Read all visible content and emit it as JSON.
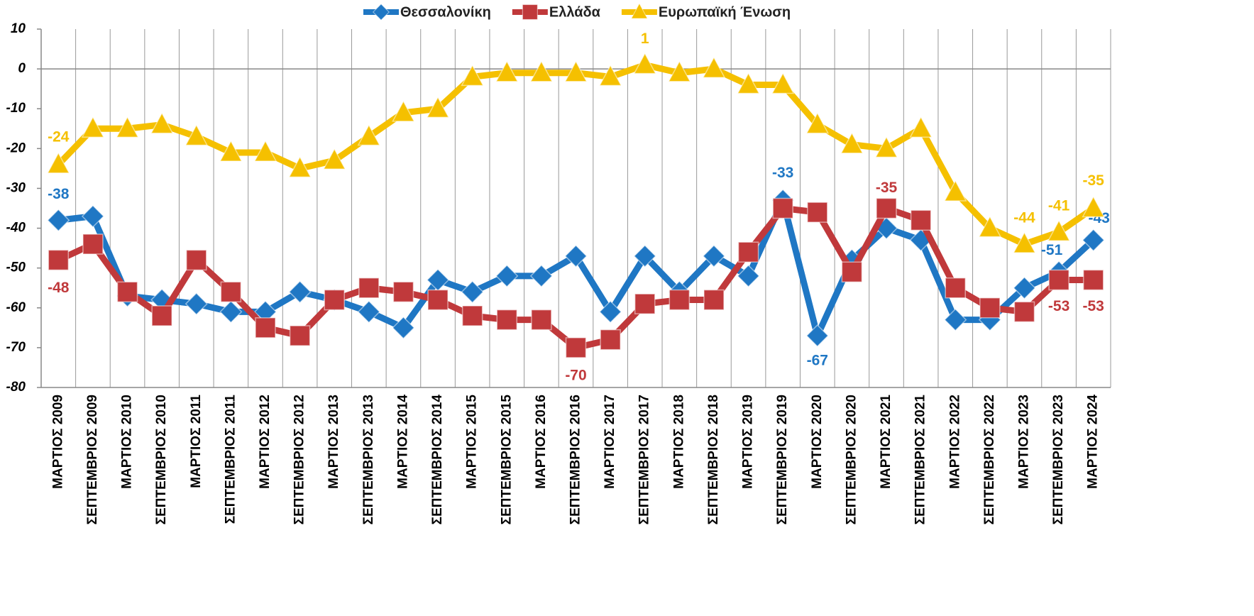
{
  "chart_data": {
    "type": "line",
    "categories": [
      "ΜΑΡΤΙΟΣ 2009",
      "ΣΕΠΤΕΜΒΡΙΟΣ 2009",
      "ΜΑΡΤΙΟΣ 2010",
      "ΣΕΠΤΕΜΒΡΙΟΣ 2010",
      "ΜΑΡΤΙΟΣ 2011",
      "ΣΕΠΤΕΜΒΡΙΟΣ 2011",
      "ΜΑΡΤΙΟΣ 2012",
      "ΣΕΠΤΕΜΒΡΙΟΣ 2012",
      "ΜΑΡΤΙΟΣ 2013",
      "ΣΕΠΤΕΜΒΡΙΟΣ 2013",
      "ΜΑΡΤΙΟΣ 2014",
      "ΣΕΠΤΕΜΒΡΙΟΣ 2014",
      "ΜΑΡΤΙΟΣ 2015",
      "ΣΕΠΤΕΜΒΡΙΟΣ 2015",
      "ΜΑΡΤΙΟΣ 2016",
      "ΣΕΠΤΕΜΒΡΙΟΣ 2016",
      "ΜΑΡΤΙΟΣ 2017",
      "ΣΕΠΤΕΜΒΡΙΟΣ 2017",
      "ΜΑΡΤΙΟΣ 2018",
      "ΣΕΠΤΕΜΒΡΙΟΣ 2018",
      "ΜΑΡΤΙΟΣ 2019",
      "ΣΕΠΤΕΜΒΡΙΟΣ 2019",
      "ΜΑΡΤΙΟΣ 2020",
      "ΣΕΠΤΕΜΒΡΙΟΣ 2020",
      "ΜΑΡΤΙΟΣ 2021",
      "ΣΕΠΤΕΜΒΡΙΟΣ 2021",
      "ΜΑΡΤΙΟΣ 2022",
      "ΣΕΠΤΕΜΒΡΙΟΣ 2022",
      "ΜΑΡΤΙΟΣ 2023",
      "ΣΕΠΤΕΜΒΡΙΟΣ 2023",
      "ΜΑΡΤΙΟΣ 2024"
    ],
    "series": [
      {
        "name": "Θεσσαλονίκη",
        "color": "#1f77c4",
        "marker": "diamond",
        "values": [
          -38,
          -37,
          -57,
          -58,
          -59,
          -61,
          -61,
          -56,
          -58,
          -61,
          -65,
          -53,
          -56,
          -52,
          -52,
          -47,
          -61,
          -47,
          -56,
          -47,
          -52,
          -33,
          -67,
          -48,
          -40,
          -43,
          -63,
          -63,
          -55,
          -51,
          -43
        ],
        "value_labels": [
          "-38",
          null,
          null,
          null,
          null,
          null,
          null,
          null,
          null,
          null,
          null,
          null,
          null,
          null,
          null,
          null,
          null,
          null,
          null,
          null,
          null,
          "-33",
          "-67",
          null,
          null,
          null,
          null,
          null,
          null,
          "-51",
          "-43"
        ]
      },
      {
        "name": "Ελλάδα",
        "color": "#c0393b",
        "marker": "square",
        "values": [
          -48,
          -44,
          -56,
          -62,
          -48,
          -56,
          -65,
          -67,
          -58,
          -55,
          -56,
          -58,
          -62,
          -63,
          -63,
          -70,
          -68,
          -59,
          -58,
          -58,
          -46,
          -35,
          -36,
          -51,
          -35,
          -38,
          -55,
          -60,
          -61,
          -53,
          -53
        ],
        "value_labels": [
          "-48",
          null,
          null,
          null,
          null,
          null,
          null,
          null,
          null,
          null,
          null,
          null,
          null,
          null,
          null,
          "-70",
          null,
          null,
          null,
          null,
          null,
          null,
          null,
          null,
          "-35",
          null,
          null,
          null,
          null,
          "-53",
          "-53"
        ]
      },
      {
        "name": "Ευρωπαϊκή Ένωση",
        "color": "#f5c000",
        "marker": "triangle",
        "values": [
          -24,
          -15,
          -15,
          -14,
          -17,
          -21,
          -21,
          -25,
          -23,
          -17,
          -11,
          -10,
          -2,
          -1,
          -1,
          -1,
          -2,
          1,
          -1,
          0,
          -4,
          -4,
          -14,
          -19,
          -20,
          -15,
          -31,
          -40,
          -44,
          -41,
          -35
        ],
        "value_labels": [
          "-24",
          null,
          null,
          null,
          null,
          null,
          null,
          null,
          null,
          null,
          null,
          null,
          null,
          null,
          null,
          null,
          null,
          "1",
          null,
          null,
          null,
          null,
          null,
          null,
          null,
          null,
          null,
          null,
          "-44",
          "-41",
          "-35"
        ]
      }
    ],
    "ylim": [
      -80,
      10
    ],
    "yticks": [
      -80,
      -70,
      -60,
      -50,
      -40,
      -30,
      -20,
      -10,
      0,
      10
    ],
    "grid": true,
    "legend": "top"
  }
}
